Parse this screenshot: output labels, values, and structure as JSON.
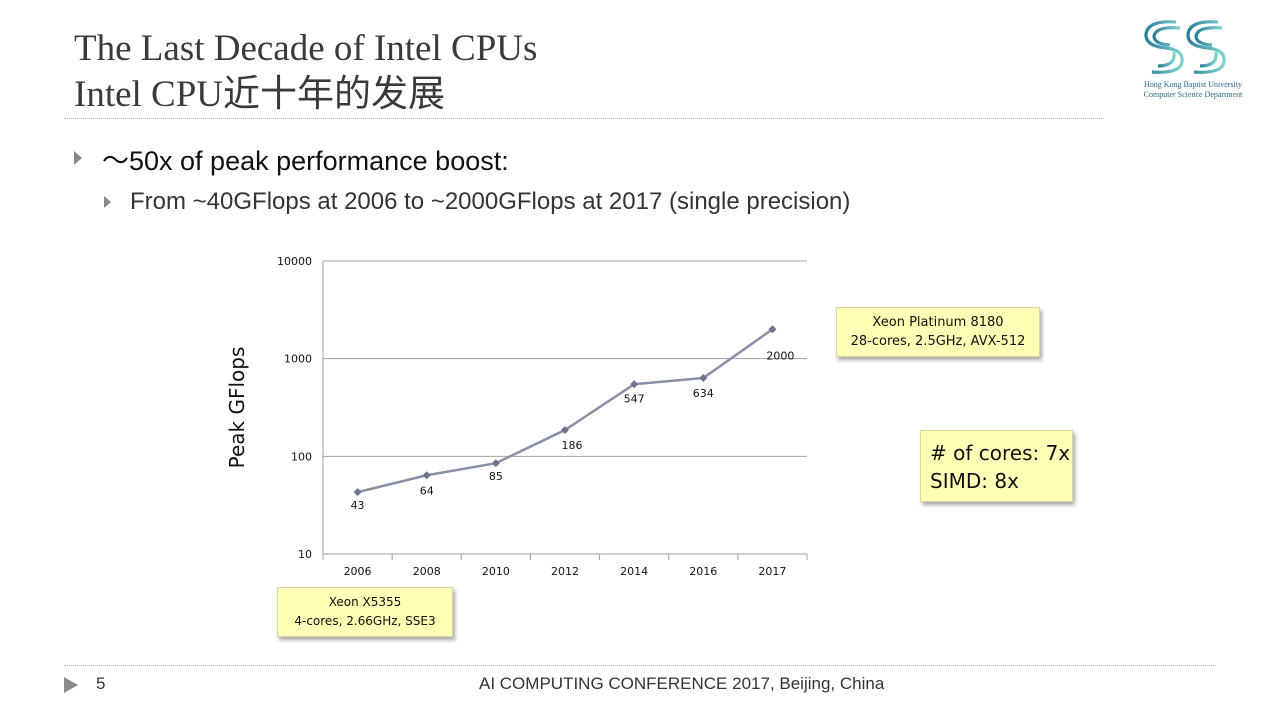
{
  "slide": {
    "title_line1": "The Last Decade of Intel CPUs",
    "title_line2": "Intel CPU近十年的发展",
    "bullet1": "～50x of peak performance boost:",
    "bullet2": "From ~40GFlops at 2006 to ~2000GFlops at 2017 (single precision)"
  },
  "logo": {
    "line1": "Hong Kong Baptist University",
    "line2": "Computer Science Department"
  },
  "chart_data": {
    "type": "line",
    "title": "",
    "xlabel": "",
    "ylabel": "Peak GFlops",
    "yscale": "log",
    "ylim": [
      10,
      10000
    ],
    "yticks": [
      "10",
      "100",
      "1000",
      "10000"
    ],
    "categories": [
      "2006",
      "2008",
      "2010",
      "2012",
      "2014",
      "2016",
      "2017"
    ],
    "series": [
      {
        "name": "Peak GFlops",
        "values": [
          43,
          64,
          85,
          186,
          547,
          634,
          2000
        ]
      }
    ],
    "grid": true,
    "colors": {
      "line": "#8a8fa8",
      "marker": "#6f7490",
      "grid": "#a0a0a0",
      "axis": "#a0a0a0"
    }
  },
  "callouts": {
    "top": {
      "line1": "Xeon Platinum 8180",
      "line2": "28-cores, 2.5GHz, AVX-512"
    },
    "bottom": {
      "line1": "Xeon X5355",
      "line2": "4-cores, 2.66GHz, SSE3"
    },
    "right": {
      "line1": "# of cores: 7x",
      "line2": "SIMD: 8x"
    }
  },
  "footer": {
    "page_number": "5",
    "text": "AI COMPUTING CONFERENCE 2017, Beijing, China"
  }
}
